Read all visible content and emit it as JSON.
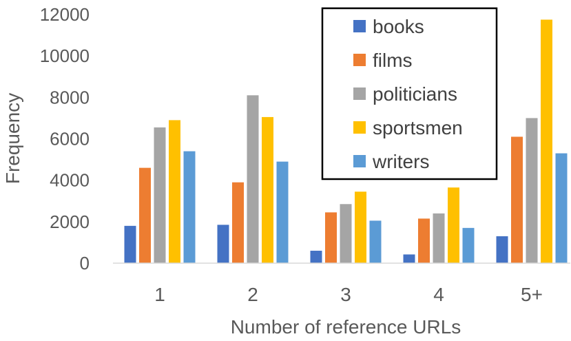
{
  "chart_data": {
    "type": "bar",
    "title": "",
    "xlabel": "Number of reference URLs",
    "ylabel": "Frequency",
    "categories": [
      "1",
      "2",
      "3",
      "4",
      "5+"
    ],
    "ylim": [
      0,
      12000
    ],
    "yticks": [
      0,
      2000,
      4000,
      6000,
      8000,
      10000,
      12000
    ],
    "grid": false,
    "legend_position": "top-right",
    "series": [
      {
        "name": "books",
        "color": "#4472C4",
        "values": [
          1800,
          1850,
          600,
          420,
          1300
        ]
      },
      {
        "name": "films",
        "color": "#ED7D31",
        "values": [
          4600,
          3900,
          2450,
          2150,
          6100
        ]
      },
      {
        "name": "politicians",
        "color": "#A5A5A5",
        "values": [
          6550,
          8100,
          2850,
          2400,
          7000
        ]
      },
      {
        "name": "sportsmen",
        "color": "#FFC000",
        "values": [
          6900,
          7050,
          3450,
          3650,
          11750
        ]
      },
      {
        "name": "writers",
        "color": "#5B9BD5",
        "values": [
          5400,
          4900,
          2050,
          1700,
          5300
        ]
      }
    ]
  }
}
